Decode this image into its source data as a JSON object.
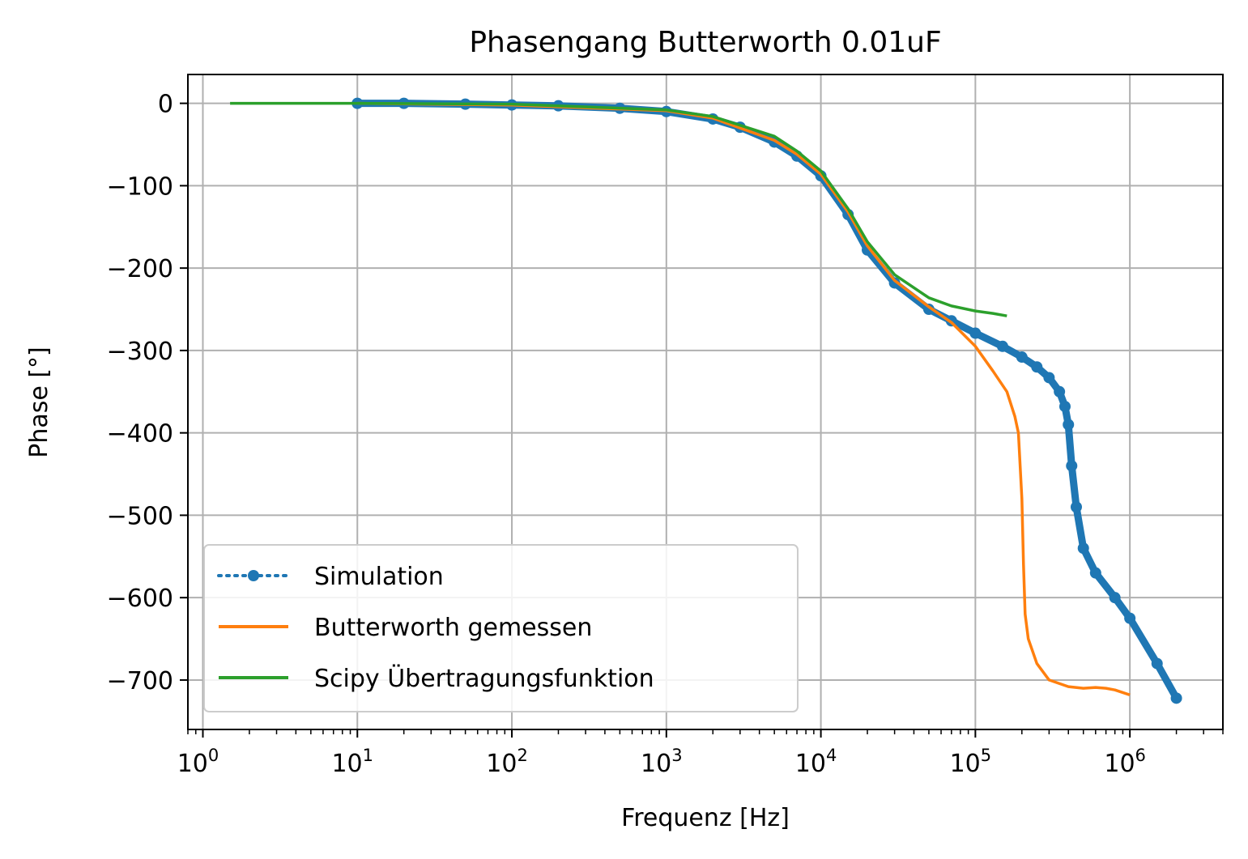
{
  "chart_data": {
    "type": "line",
    "title": "Phasengang Butterworth 0.01uF",
    "xlabel": "Frequenz [Hz]",
    "ylabel": "Phase [°]",
    "xscale": "log",
    "xlim": [
      0.8,
      4000000
    ],
    "ylim": [
      -760,
      35
    ],
    "grid": true,
    "legend_position": "lower-left",
    "x_ticks": [
      {
        "value": 1,
        "base": "10",
        "exp": "0"
      },
      {
        "value": 10,
        "base": "10",
        "exp": "1"
      },
      {
        "value": 100,
        "base": "10",
        "exp": "2"
      },
      {
        "value": 1000,
        "base": "10",
        "exp": "3"
      },
      {
        "value": 10000,
        "base": "10",
        "exp": "4"
      },
      {
        "value": 100000,
        "base": "10",
        "exp": "5"
      },
      {
        "value": 1000000,
        "base": "10",
        "exp": "6"
      }
    ],
    "y_ticks": [
      {
        "value": 0,
        "label": "0"
      },
      {
        "value": -100,
        "label": "−100"
      },
      {
        "value": -200,
        "label": "−200"
      },
      {
        "value": -300,
        "label": "−300"
      },
      {
        "value": -400,
        "label": "−400"
      },
      {
        "value": -500,
        "label": "−500"
      },
      {
        "value": -600,
        "label": "−600"
      },
      {
        "value": -700,
        "label": "−700"
      }
    ],
    "series": [
      {
        "name": "Simulation",
        "color": "#1f77b4",
        "style": "dotted-markers",
        "x": [
          10,
          20,
          50,
          100,
          200,
          500,
          1000,
          2000,
          3000,
          5000,
          7000,
          10000,
          15000,
          20000,
          30000,
          50000,
          70000,
          100000,
          150000,
          200000,
          250000,
          300000,
          350000,
          380000,
          400000,
          420000,
          450000,
          500000,
          600000,
          800000,
          1000000,
          1500000,
          2000000
        ],
        "y": [
          0,
          0,
          -1,
          -2,
          -3,
          -6,
          -10,
          -19,
          -29,
          -47,
          -64,
          -88,
          -135,
          -178,
          -218,
          -250,
          -264,
          -279,
          -295,
          -308,
          -320,
          -333,
          -350,
          -368,
          -390,
          -440,
          -490,
          -540,
          -570,
          -600,
          -625,
          -680,
          -722
        ]
      },
      {
        "name": "Butterworth gemessen",
        "color": "#ff7f0e",
        "style": "line",
        "x": [
          10,
          100,
          1000,
          2000,
          5000,
          7000,
          10000,
          15000,
          20000,
          30000,
          50000,
          70000,
          100000,
          130000,
          160000,
          180000,
          190000,
          200000,
          205000,
          210000,
          220000,
          250000,
          300000,
          400000,
          500000,
          600000,
          700000,
          800000,
          1000000
        ],
        "y": [
          0,
          -2,
          -9,
          -18,
          -45,
          -62,
          -86,
          -132,
          -173,
          -215,
          -247,
          -266,
          -295,
          -325,
          -350,
          -380,
          -400,
          -480,
          -560,
          -620,
          -650,
          -680,
          -700,
          -708,
          -710,
          -709,
          -710,
          -712,
          -718
        ]
      },
      {
        "name": "Scipy Übertragungsfunktion",
        "color": "#2ca02c",
        "style": "line",
        "x": [
          1.5,
          10,
          100,
          1000,
          2000,
          5000,
          7000,
          10000,
          15000,
          20000,
          30000,
          50000,
          70000,
          100000,
          130000,
          160000
        ],
        "y": [
          0,
          0,
          -1,
          -8,
          -16,
          -40,
          -58,
          -82,
          -128,
          -168,
          -208,
          -236,
          -246,
          -252,
          -255,
          -258
        ]
      }
    ]
  }
}
